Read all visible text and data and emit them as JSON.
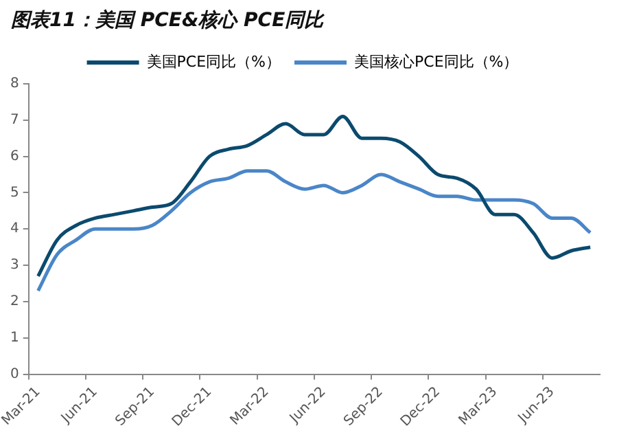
{
  "chart_data": {
    "type": "line",
    "title": "图表11：美国 PCE&核心 PCE同比",
    "categories": [
      "Mar-21",
      null,
      null,
      "Jun-21",
      null,
      null,
      "Sep-21",
      null,
      null,
      "Dec-21",
      null,
      null,
      "Mar-22",
      null,
      null,
      "Jun-22",
      null,
      null,
      "Sep-22",
      null,
      null,
      "Dec-22",
      null,
      null,
      "Mar-23",
      null,
      null,
      "Jun-23",
      null,
      null
    ],
    "series": [
      {
        "name": "美国PCE同比（%）",
        "color": "#0b4a6e",
        "values": [
          2.7,
          3.7,
          4.1,
          4.3,
          4.4,
          4.5,
          4.6,
          4.7,
          5.3,
          6.0,
          6.2,
          6.3,
          6.6,
          6.9,
          6.6,
          6.6,
          7.1,
          6.5,
          6.5,
          6.4,
          6.0,
          5.5,
          5.4,
          5.1,
          4.4,
          4.4,
          3.9,
          3.2,
          3.4,
          3.5
        ]
      },
      {
        "name": "美国核心PCE同比（%）",
        "color": "#4a86c8",
        "values": [
          2.3,
          3.3,
          3.7,
          4.0,
          4.0,
          4.0,
          4.1,
          4.5,
          5.0,
          5.3,
          5.4,
          5.6,
          5.6,
          5.3,
          5.1,
          5.2,
          5.0,
          5.2,
          5.5,
          5.3,
          5.1,
          4.9,
          4.9,
          4.8,
          4.8,
          4.8,
          4.7,
          4.3,
          4.3,
          3.9
        ]
      }
    ],
    "ylim": [
      0,
      8
    ],
    "yticks": [
      0,
      1,
      2,
      3,
      4,
      5,
      6,
      7,
      8
    ],
    "grid": false,
    "legend": "top",
    "marker": "none",
    "line_style": "solid"
  }
}
